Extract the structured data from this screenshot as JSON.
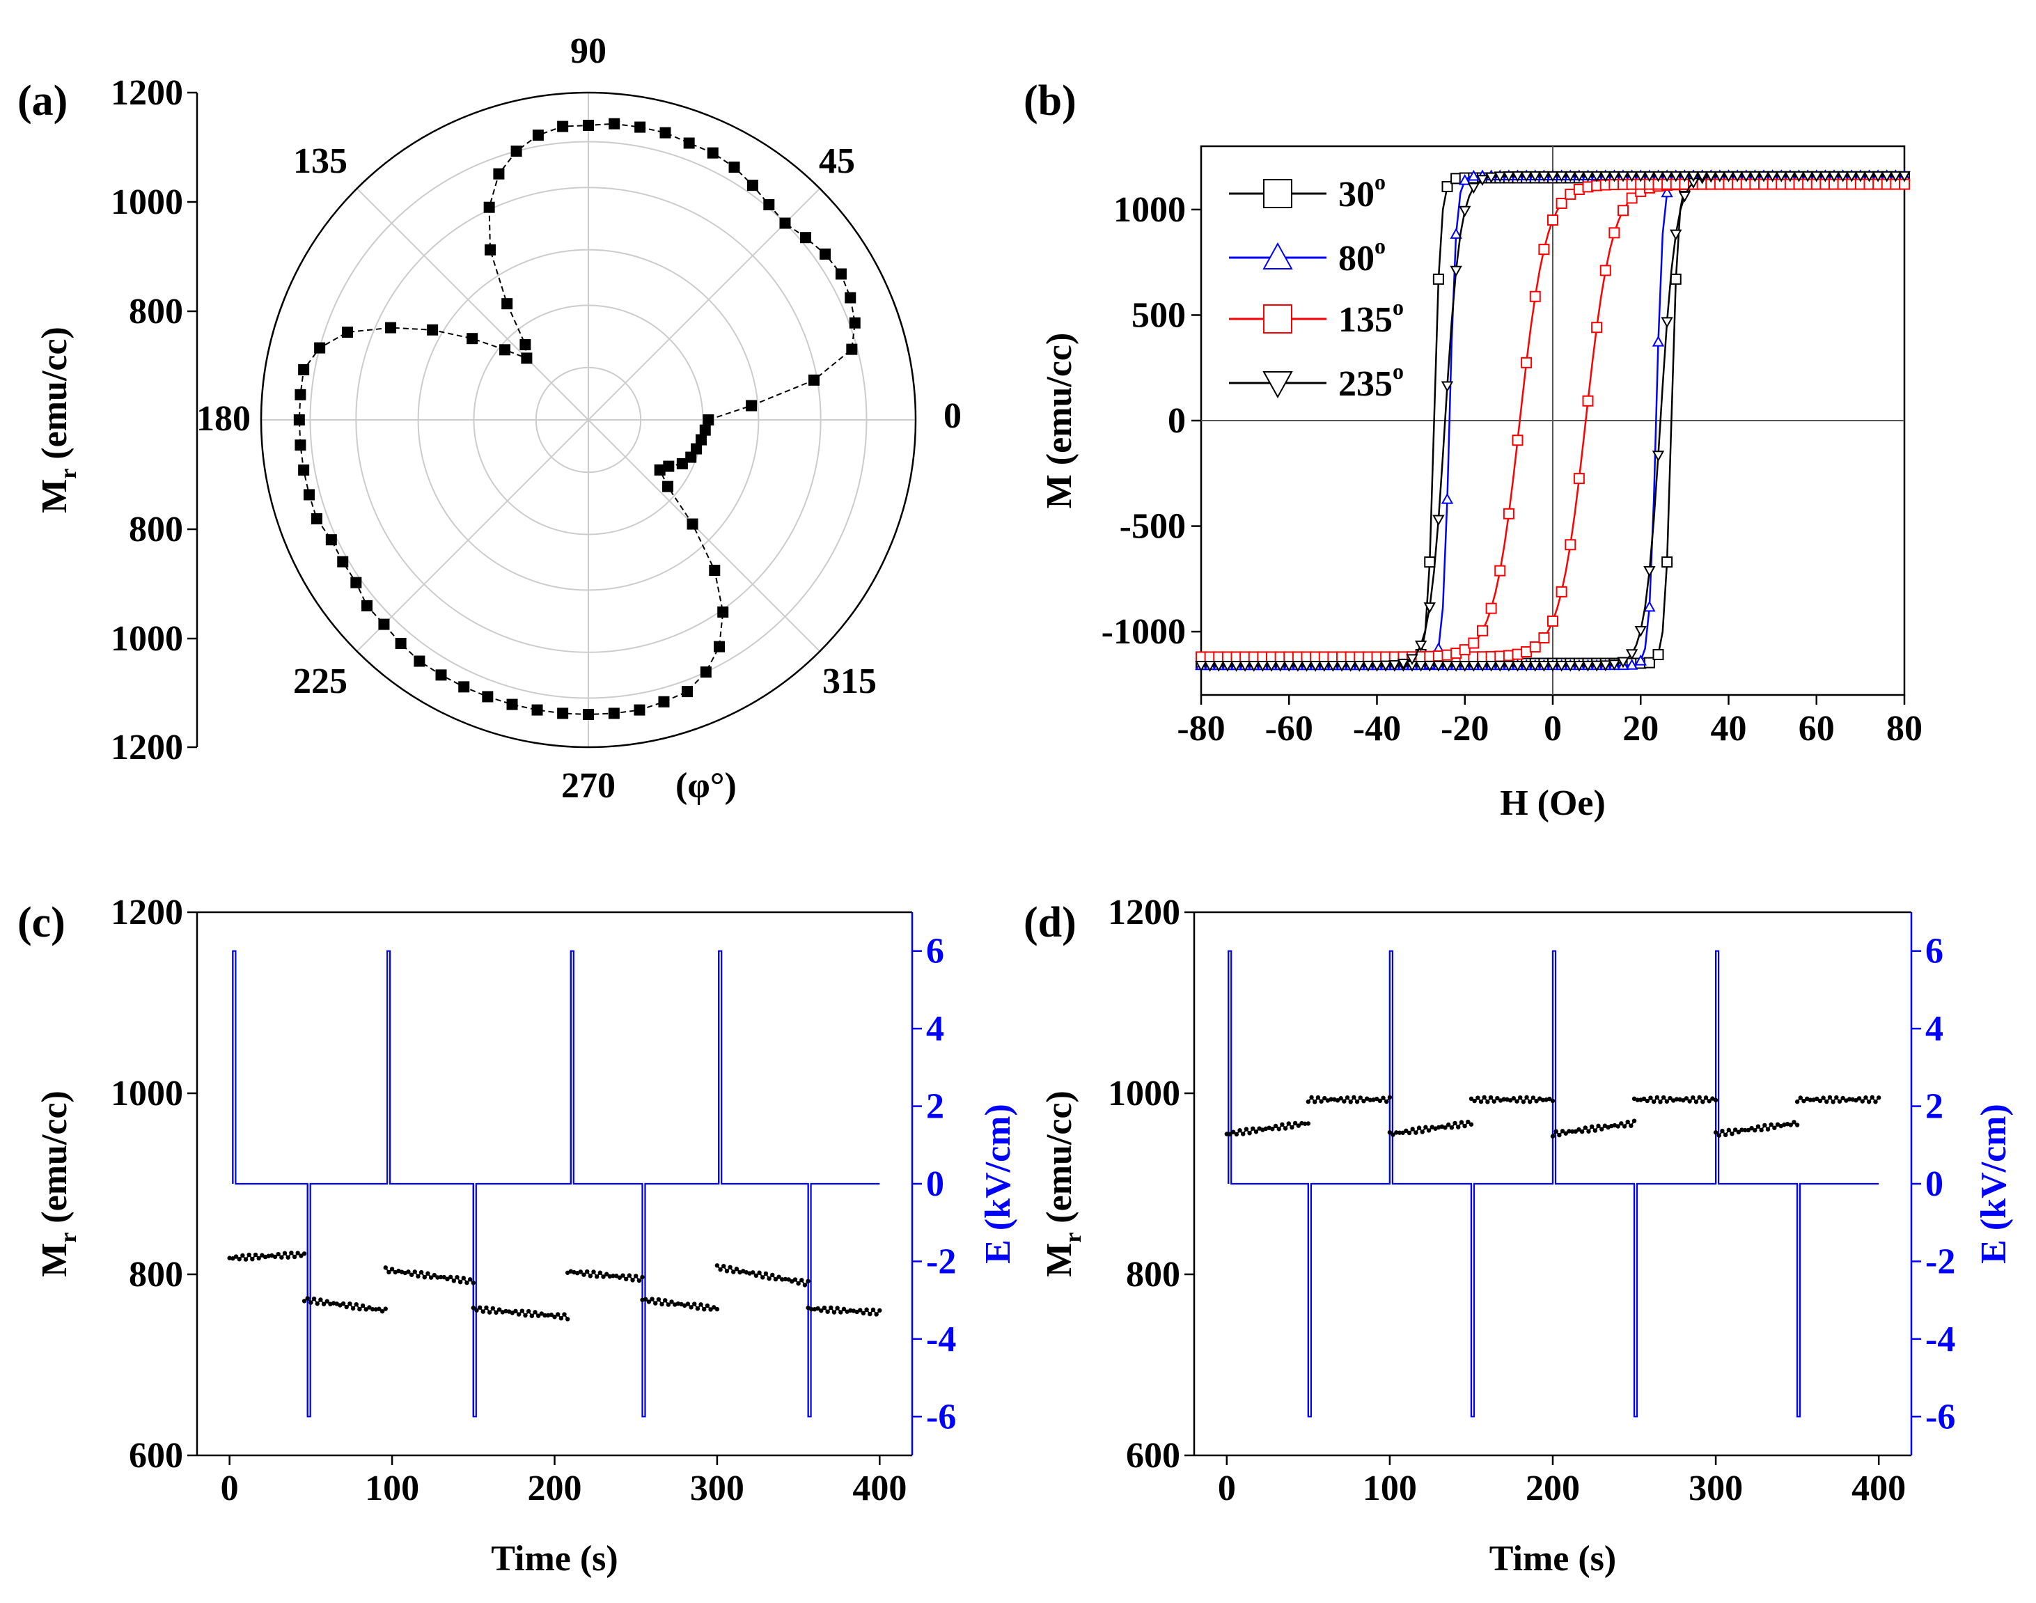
{
  "colors": {
    "black": "#000000",
    "blue": "#0000ff",
    "red": "#ff0000",
    "grid": "#cccccc",
    "axis_line": "#555555"
  },
  "chart_data": [
    {
      "panel": "(a)",
      "type": "scatter",
      "coordinate_system": "polar",
      "title": "",
      "ylabel": "M",
      "ylabel_sub": "r",
      "ylabel_units": " (emu/cc)",
      "angle_unit_label": "(φ°)",
      "angle_ticks": [
        "0",
        "45",
        "90",
        "135",
        "180",
        "225",
        "270",
        "315"
      ],
      "radial_tick_labels": [
        "1200",
        "1000",
        "800",
        "800",
        "1000",
        "1200"
      ],
      "radial_range": [
        600,
        1200
      ],
      "grid": true,
      "series": [
        {
          "name": "Mr",
          "marker": "square",
          "line": "dashed",
          "phi": [
            0,
            5,
            10,
            15,
            20,
            25,
            30,
            35,
            40,
            45,
            50,
            55,
            60,
            65,
            70,
            75,
            80,
            85,
            90,
            95,
            100,
            105,
            110,
            115,
            120,
            125,
            130,
            135,
            140,
            145,
            150,
            155,
            160,
            165,
            170,
            175,
            180,
            185,
            190,
            195,
            200,
            205,
            210,
            215,
            220,
            225,
            230,
            235,
            240,
            245,
            250,
            255,
            260,
            265,
            270,
            275,
            280,
            285,
            290,
            295,
            300,
            305,
            310,
            315,
            320,
            325,
            330,
            335,
            340,
            345,
            350,
            355
          ],
          "values": [
            820,
            900,
            1020,
            1100,
            1120,
            1130,
            1135,
            1130,
            1120,
            1110,
            1115,
            1125,
            1135,
            1140,
            1140,
            1145,
            1145,
            1145,
            1140,
            1140,
            1130,
            1110,
            1080,
            1030,
            960,
            860,
            780,
            760,
            800,
            860,
            930,
            1000,
            1070,
            1110,
            1130,
            1130,
            1130,
            1130,
            1130,
            1130,
            1130,
            1120,
            1120,
            1120,
            1130,
            1130,
            1135,
            1140,
            1140,
            1140,
            1140,
            1140,
            1140,
            1140,
            1140,
            1140,
            1140,
            1135,
            1130,
            1110,
            1080,
            1030,
            960,
            870,
            790,
            760,
            770,
            790,
            800,
            805,
            810,
            815
          ]
        }
      ]
    },
    {
      "panel": "(b)",
      "type": "line",
      "title": "",
      "xlabel": "H (Oe)",
      "ylabel": "M (emu/cc)",
      "xlim": [
        -80,
        80
      ],
      "ylim": [
        -1300,
        1300
      ],
      "xticks": [
        -80,
        -60,
        -40,
        -20,
        0,
        20,
        40,
        60,
        80
      ],
      "yticks": [
        -1000,
        -500,
        0,
        500,
        1000
      ],
      "grid": false,
      "legend_location": "top-left",
      "series": [
        {
          "name": "30",
          "name_sup": "o",
          "color": "#000000",
          "marker": "square",
          "Ms": 1150,
          "Hc": 27,
          "width": 1.5
        },
        {
          "name": "80",
          "name_sup": "o",
          "color": "#0000ff",
          "marker": "triangle-up",
          "Ms": 1160,
          "Hc": 23.5,
          "width": 1.5
        },
        {
          "name": "135",
          "name_sup": "o",
          "color": "#ff0000",
          "marker": "square",
          "Ms": 1120,
          "Hc": 7.5,
          "width": 6
        },
        {
          "name": "235",
          "name_sup": "o",
          "color": "#000000",
          "marker": "triangle-down",
          "Ms": 1160,
          "Hc": 24.5,
          "width": 3.5
        }
      ]
    },
    {
      "panel": "(c)",
      "type": "line",
      "title": "",
      "xlabel": "Time (s)",
      "ylabel": "M",
      "ylabel_sub": "r",
      "ylabel_units": " (emu/cc)",
      "y2label": "E (kV/cm)",
      "xlim": [
        -20,
        420
      ],
      "ylim": [
        600,
        1200
      ],
      "y2lim": [
        -7,
        7
      ],
      "xticks": [
        0,
        100,
        200,
        300,
        400
      ],
      "yticks": [
        600,
        800,
        1000,
        1200
      ],
      "y2ticks": [
        -6,
        -4,
        -2,
        0,
        2,
        4,
        6
      ],
      "grid": false,
      "series": [
        {
          "name": "Mr",
          "axis": "left",
          "color": "#000000",
          "marker": "dot",
          "segments": [
            {
              "t": [
                0,
                46
              ],
              "v": [
                818,
                822
              ]
            },
            {
              "t": [
                46,
                96
              ],
              "v": [
                772,
                760
              ]
            },
            {
              "t": [
                96,
                150
              ],
              "v": [
                805,
                792
              ]
            },
            {
              "t": [
                150,
                208
              ],
              "v": [
                762,
                753
              ]
            },
            {
              "t": [
                208,
                254
              ],
              "v": [
                803,
                795
              ]
            },
            {
              "t": [
                254,
                300
              ],
              "v": [
                772,
                762
              ]
            },
            {
              "t": [
                300,
                356
              ],
              "v": [
                808,
                790
              ]
            },
            {
              "t": [
                356,
                400
              ],
              "v": [
                762,
                758
              ]
            }
          ]
        },
        {
          "name": "E",
          "axis": "right",
          "color": "#0000ff",
          "pulses": [
            {
              "t": 2,
              "e": 6
            },
            {
              "t": 48,
              "e": -6
            },
            {
              "t": 97,
              "e": 6
            },
            {
              "t": 150,
              "e": -6
            },
            {
              "t": 210,
              "e": 6
            },
            {
              "t": 254,
              "e": -6
            },
            {
              "t": 301,
              "e": 6
            },
            {
              "t": 356,
              "e": -6
            }
          ]
        }
      ]
    },
    {
      "panel": "(d)",
      "type": "line",
      "title": "",
      "xlabel": "Time (s)",
      "ylabel": "M",
      "ylabel_sub": "r",
      "ylabel_units": " (emu/cc)",
      "y2label": "E (kV/cm)",
      "xlim": [
        -20,
        420
      ],
      "ylim": [
        600,
        1200
      ],
      "y2lim": [
        -7,
        7
      ],
      "xticks": [
        0,
        100,
        200,
        300,
        400
      ],
      "yticks": [
        600,
        800,
        1000,
        1200
      ],
      "y2ticks": [
        -6,
        -4,
        -2,
        0,
        2,
        4,
        6
      ],
      "grid": false,
      "series": [
        {
          "name": "Mr",
          "axis": "left",
          "color": "#000000",
          "marker": "dot",
          "segments": [
            {
              "t": [
                0,
                50
              ],
              "v": [
                955,
                967
              ]
            },
            {
              "t": [
                50,
                100
              ],
              "v": [
                993,
                993
              ]
            },
            {
              "t": [
                100,
                150
              ],
              "v": [
                955,
                967
              ]
            },
            {
              "t": [
                150,
                200
              ],
              "v": [
                993,
                993
              ]
            },
            {
              "t": [
                200,
                250
              ],
              "v": [
                955,
                967
              ]
            },
            {
              "t": [
                250,
                300
              ],
              "v": [
                993,
                993
              ]
            },
            {
              "t": [
                300,
                350
              ],
              "v": [
                955,
                967
              ]
            },
            {
              "t": [
                350,
                400
              ],
              "v": [
                993,
                993
              ]
            }
          ]
        },
        {
          "name": "E",
          "axis": "right",
          "color": "#0000ff",
          "pulses": [
            {
              "t": 1,
              "e": 6
            },
            {
              "t": 50,
              "e": -6
            },
            {
              "t": 100,
              "e": 6
            },
            {
              "t": 150,
              "e": -6
            },
            {
              "t": 200,
              "e": 6
            },
            {
              "t": 250,
              "e": -6
            },
            {
              "t": 300,
              "e": 6
            },
            {
              "t": 350,
              "e": -6
            }
          ]
        }
      ]
    }
  ]
}
